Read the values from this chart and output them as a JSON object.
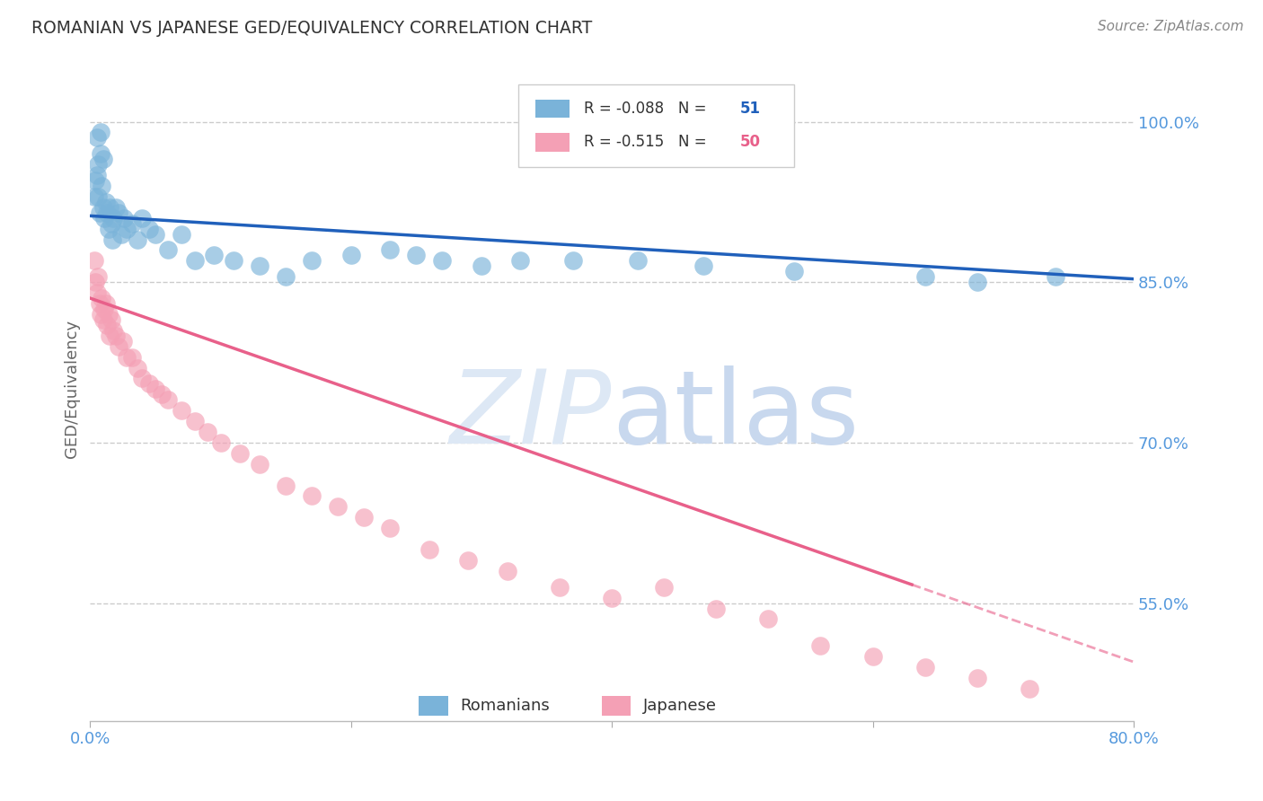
{
  "title": "ROMANIAN VS JAPANESE GED/EQUIVALENCY CORRELATION CHART",
  "source": "Source: ZipAtlas.com",
  "ylabel": "GED/Equivalency",
  "xlim": [
    0.0,
    0.8
  ],
  "ylim": [
    0.44,
    1.06
  ],
  "r_romanian": -0.088,
  "n_romanian": 51,
  "r_japanese": -0.515,
  "n_japanese": 50,
  "color_romanian": "#7ab3d9",
  "color_japanese": "#f4a0b5",
  "color_line_romanian": "#2060bb",
  "color_line_japanese": "#e8608a",
  "color_title": "#333333",
  "color_source": "#888888",
  "color_axis_right": "#5599dd",
  "color_axis_bottom": "#5599dd",
  "watermark_color": "#dde8f5",
  "line_romanian_x0": 0.0,
  "line_romanian_y0": 0.912,
  "line_romanian_x1": 0.8,
  "line_romanian_y1": 0.853,
  "line_japanese_x0": 0.0,
  "line_japanese_y0": 0.835,
  "line_japanese_x1": 0.8,
  "line_japanese_y1": 0.495,
  "line_japanese_solid_end": 0.63,
  "romanian_x": [
    0.003,
    0.004,
    0.005,
    0.005,
    0.006,
    0.006,
    0.007,
    0.008,
    0.008,
    0.009,
    0.01,
    0.01,
    0.011,
    0.012,
    0.013,
    0.014,
    0.015,
    0.016,
    0.017,
    0.018,
    0.02,
    0.022,
    0.024,
    0.026,
    0.028,
    0.032,
    0.036,
    0.04,
    0.045,
    0.05,
    0.06,
    0.07,
    0.08,
    0.095,
    0.11,
    0.13,
    0.15,
    0.17,
    0.2,
    0.23,
    0.25,
    0.27,
    0.3,
    0.33,
    0.37,
    0.42,
    0.47,
    0.54,
    0.64,
    0.68,
    0.74
  ],
  "romanian_y": [
    0.93,
    0.945,
    0.95,
    0.985,
    0.93,
    0.96,
    0.915,
    0.97,
    0.99,
    0.94,
    0.92,
    0.965,
    0.91,
    0.925,
    0.915,
    0.9,
    0.92,
    0.905,
    0.89,
    0.91,
    0.92,
    0.915,
    0.895,
    0.91,
    0.9,
    0.905,
    0.89,
    0.91,
    0.9,
    0.895,
    0.88,
    0.895,
    0.87,
    0.875,
    0.87,
    0.865,
    0.855,
    0.87,
    0.875,
    0.88,
    0.875,
    0.87,
    0.865,
    0.87,
    0.87,
    0.87,
    0.865,
    0.86,
    0.855,
    0.85,
    0.855
  ],
  "japanese_x": [
    0.003,
    0.004,
    0.005,
    0.006,
    0.007,
    0.008,
    0.009,
    0.01,
    0.011,
    0.012,
    0.013,
    0.014,
    0.015,
    0.016,
    0.018,
    0.02,
    0.022,
    0.025,
    0.028,
    0.032,
    0.036,
    0.04,
    0.045,
    0.05,
    0.055,
    0.06,
    0.07,
    0.08,
    0.09,
    0.1,
    0.115,
    0.13,
    0.15,
    0.17,
    0.19,
    0.21,
    0.23,
    0.26,
    0.29,
    0.32,
    0.36,
    0.4,
    0.44,
    0.48,
    0.52,
    0.56,
    0.6,
    0.64,
    0.68,
    0.72
  ],
  "japanese_y": [
    0.87,
    0.85,
    0.84,
    0.855,
    0.83,
    0.82,
    0.835,
    0.815,
    0.825,
    0.83,
    0.81,
    0.82,
    0.8,
    0.815,
    0.805,
    0.8,
    0.79,
    0.795,
    0.78,
    0.78,
    0.77,
    0.76,
    0.755,
    0.75,
    0.745,
    0.74,
    0.73,
    0.72,
    0.71,
    0.7,
    0.69,
    0.68,
    0.66,
    0.65,
    0.64,
    0.63,
    0.62,
    0.6,
    0.59,
    0.58,
    0.565,
    0.555,
    0.565,
    0.545,
    0.535,
    0.51,
    0.5,
    0.49,
    0.48,
    0.47
  ]
}
